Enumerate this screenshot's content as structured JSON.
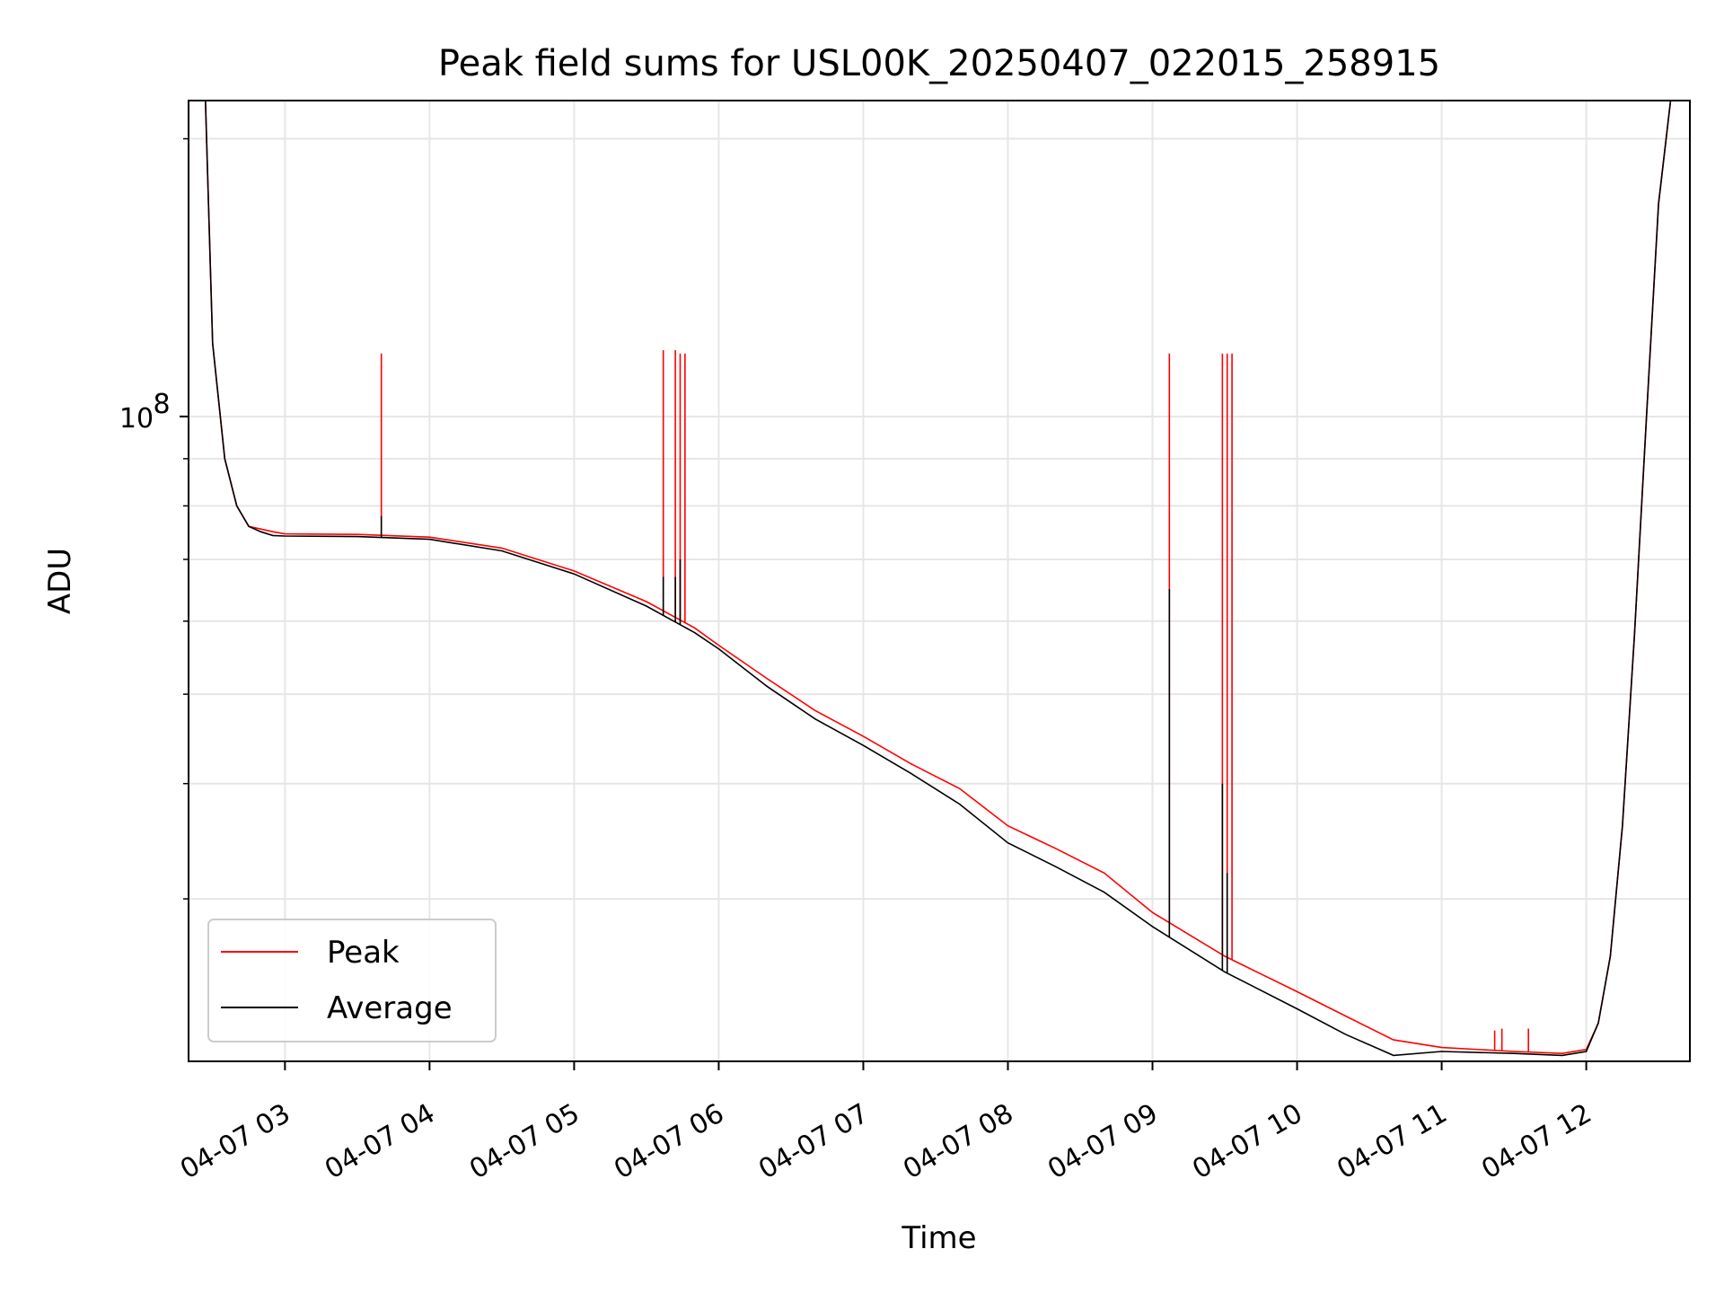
{
  "chart_data": {
    "type": "line",
    "title": "Peak field sums for USL00K_20250407_022015_258915",
    "xlabel": "Time",
    "ylabel": "ADU",
    "y_scale": "log",
    "grid": true,
    "grid_minor_y": true,
    "legend_position": "lower-left",
    "xlim": [
      "2025-04-07 02:20",
      "2025-04-07 12:43"
    ],
    "ylim": [
      20000000.0,
      220000000.0
    ],
    "x_ticks": [
      {
        "t": "2025-04-07 03:00",
        "label": "04-07 03"
      },
      {
        "t": "2025-04-07 04:00",
        "label": "04-07 04"
      },
      {
        "t": "2025-04-07 05:00",
        "label": "04-07 05"
      },
      {
        "t": "2025-04-07 06:00",
        "label": "04-07 06"
      },
      {
        "t": "2025-04-07 07:00",
        "label": "04-07 07"
      },
      {
        "t": "2025-04-07 08:00",
        "label": "04-07 08"
      },
      {
        "t": "2025-04-07 09:00",
        "label": "04-07 09"
      },
      {
        "t": "2025-04-07 10:00",
        "label": "04-07 10"
      },
      {
        "t": "2025-04-07 11:00",
        "label": "04-07 11"
      },
      {
        "t": "2025-04-07 12:00",
        "label": "04-07 12"
      }
    ],
    "y_major_ticks": [
      {
        "v": 100000000,
        "base": "10",
        "exp": "8"
      }
    ],
    "y_minor_ticks": [
      30000000,
      40000000,
      50000000,
      60000000,
      70000000,
      80000000,
      90000000,
      200000000
    ],
    "x": [
      "2025-04-07 02:20",
      "2025-04-07 02:27",
      "2025-04-07 02:30",
      "2025-04-07 02:35",
      "2025-04-07 02:40",
      "2025-04-07 02:45",
      "2025-04-07 02:50",
      "2025-04-07 02:55",
      "2025-04-07 03:00",
      "2025-04-07 03:30",
      "2025-04-07 04:00",
      "2025-04-07 04:30",
      "2025-04-07 05:00",
      "2025-04-07 05:30",
      "2025-04-07 05:50",
      "2025-04-07 06:00",
      "2025-04-07 06:20",
      "2025-04-07 06:40",
      "2025-04-07 07:00",
      "2025-04-07 07:20",
      "2025-04-07 07:40",
      "2025-04-07 08:00",
      "2025-04-07 08:20",
      "2025-04-07 08:40",
      "2025-04-07 09:00",
      "2025-04-07 09:30",
      "2025-04-07 10:00",
      "2025-04-07 10:20",
      "2025-04-07 10:40",
      "2025-04-07 11:00",
      "2025-04-07 11:30",
      "2025-04-07 11:50",
      "2025-04-07 12:00",
      "2025-04-07 12:05",
      "2025-04-07 12:10",
      "2025-04-07 12:15",
      "2025-04-07 12:20",
      "2025-04-07 12:25",
      "2025-04-07 12:30",
      "2025-04-07 12:35"
    ],
    "series": [
      {
        "name": "Peak",
        "color": "#ff0000",
        "values": [
          220000000,
          220000000,
          120000000,
          90000000,
          80000000,
          76000000,
          75500000,
          75000000,
          74600000,
          74500000,
          74000000,
          72000000,
          68000000,
          63000000,
          59000000,
          56500000,
          52000000,
          48000000,
          45000000,
          42000000,
          39500000,
          36000000,
          34000000,
          32000000,
          29000000,
          26000000,
          23800000,
          22400000,
          21100000,
          20700000,
          20500000,
          20400000,
          20600000,
          22000000,
          26000000,
          36000000,
          58000000,
          100000000,
          170000000,
          220000000
        ],
        "spikes": [
          {
            "t": "2025-04-07 03:40",
            "value": 117000000
          },
          {
            "t": "2025-04-07 05:37",
            "value": 118000000
          },
          {
            "t": "2025-04-07 05:42",
            "value": 118000000
          },
          {
            "t": "2025-04-07 05:44",
            "value": 117000000
          },
          {
            "t": "2025-04-07 05:46",
            "value": 117000000
          },
          {
            "t": "2025-04-07 09:07",
            "value": 117000000
          },
          {
            "t": "2025-04-07 09:29",
            "value": 117000000
          },
          {
            "t": "2025-04-07 09:31",
            "value": 117000000
          },
          {
            "t": "2025-04-07 09:33",
            "value": 117000000
          },
          {
            "t": "2025-04-07 11:22",
            "value": 21600000
          },
          {
            "t": "2025-04-07 11:25",
            "value": 21700000
          },
          {
            "t": "2025-04-07 11:36",
            "value": 21700000
          }
        ]
      },
      {
        "name": "Average",
        "color": "#000000",
        "values": [
          220000000,
          220000000,
          120000000,
          90000000,
          80000000,
          76000000,
          75000000,
          74300000,
          74200000,
          74100000,
          73600000,
          71500000,
          67500000,
          62300000,
          58300000,
          56000000,
          51000000,
          47000000,
          44000000,
          41000000,
          38000000,
          34500000,
          32500000,
          30500000,
          28000000,
          25000000,
          22800000,
          21400000,
          20300000,
          20500000,
          20400000,
          20300000,
          20500000,
          22000000,
          26000000,
          36000000,
          58000000,
          100000000,
          170000000,
          220000000
        ],
        "spikes": [
          {
            "t": "2025-04-07 03:40",
            "value": 78000000
          },
          {
            "t": "2025-04-07 05:37",
            "value": 67000000
          },
          {
            "t": "2025-04-07 05:42",
            "value": 67000000
          },
          {
            "t": "2025-04-07 05:44",
            "value": 70000000
          },
          {
            "t": "2025-04-07 09:07",
            "value": 65000000
          },
          {
            "t": "2025-04-07 09:29",
            "value": 40000000
          },
          {
            "t": "2025-04-07 09:31",
            "value": 32000000
          }
        ]
      }
    ]
  }
}
